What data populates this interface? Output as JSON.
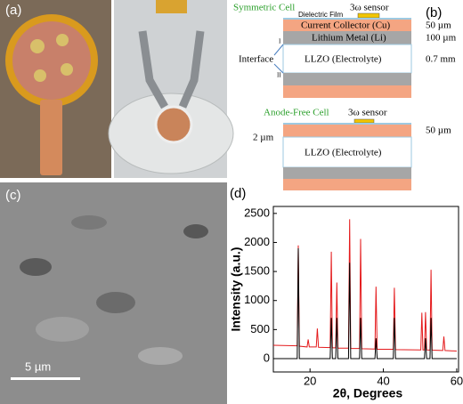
{
  "panel_a": {
    "label": "(a)"
  },
  "panel_b": {
    "label": "(b)",
    "symmetric": {
      "title": "Symmetric Cell",
      "sensor": "3ω sensor",
      "film": "Dielectric Film",
      "collector": "Current Collector (Cu)",
      "collector_thickness": "50 µm",
      "lithium": "Lithium Metal (Li)",
      "lithium_thickness": "100 µm",
      "interface": "Interface",
      "interface_1": "I",
      "interface_2": "II",
      "electrolyte": "LLZO (Electrolyte)",
      "electrolyte_thickness": "0.7 mm"
    },
    "anode_free": {
      "title": "Anode-Free Cell",
      "sensor": "3ω sensor",
      "film_thickness": "2 µm",
      "collector_thickness": "50 µm",
      "electrolyte": "LLZO (Electrolyte)"
    }
  },
  "panel_c": {
    "label": "(c)",
    "scale_bar": "5 µm"
  },
  "chart_data": {
    "type": "line",
    "label": "(d)",
    "x_label": "2θ, Degrees",
    "y_label": "Intensity (a.u.)",
    "xlim": [
      10,
      60.5
    ],
    "ylim": [
      -230,
      2620
    ],
    "xticks": [
      20,
      40,
      60
    ],
    "yticks": [
      0,
      500,
      1000,
      1500,
      2000,
      2500
    ],
    "series": [
      {
        "color": "#e41a1c",
        "x": [
          10,
          16.5,
          16.8,
          17.1,
          19.2,
          19.5,
          19.8,
          21.7,
          22.0,
          22.3,
          25.5,
          25.8,
          26.1,
          27.0,
          27.3,
          27.6,
          30.5,
          30.8,
          31.1,
          33.5,
          33.8,
          34.1,
          37.7,
          38.0,
          38.3,
          42.7,
          43.0,
          43.3,
          50.2,
          50.5,
          50.8,
          51.2,
          51.5,
          51.8,
          52.7,
          53.0,
          53.3,
          56.2,
          56.5,
          56.8,
          60
        ],
        "values": [
          230,
          220,
          1950,
          215,
          200,
          330,
          200,
          200,
          520,
          195,
          190,
          1840,
          185,
          185,
          1310,
          180,
          180,
          2400,
          175,
          175,
          2060,
          170,
          165,
          1240,
          160,
          160,
          1220,
          155,
          150,
          790,
          150,
          150,
          800,
          150,
          145,
          1530,
          145,
          140,
          380,
          140,
          130
        ]
      },
      {
        "color": "#000000",
        "x": [
          10,
          16.5,
          16.8,
          17.1,
          25.5,
          25.8,
          26.1,
          27.0,
          27.3,
          27.6,
          30.5,
          30.8,
          31.1,
          33.5,
          33.8,
          34.1,
          37.7,
          38.0,
          38.3,
          42.7,
          43.0,
          43.3,
          51.2,
          51.5,
          51.8,
          52.7,
          53.0,
          53.3,
          60
        ],
        "values": [
          0,
          0,
          1900,
          0,
          0,
          700,
          0,
          0,
          700,
          0,
          0,
          1650,
          0,
          0,
          700,
          0,
          0,
          350,
          0,
          0,
          700,
          0,
          0,
          350,
          0,
          0,
          700,
          0,
          0
        ]
      }
    ]
  }
}
